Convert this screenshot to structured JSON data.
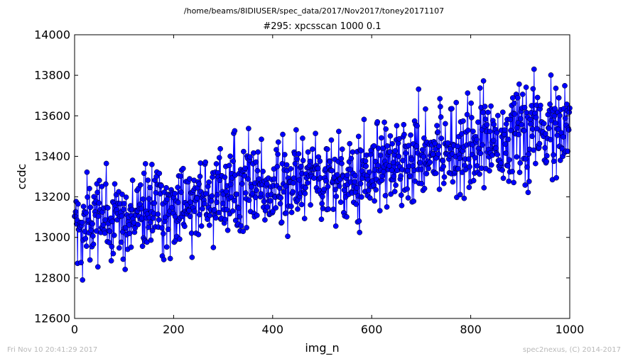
{
  "chart_data": {
    "type": "line",
    "suptitle": "/home/beams/8IDIUSER/spec_data/2017/Nov2017/toney20171107",
    "title": "#295: xpcsscan 1000 0.1",
    "xlabel": "img_n",
    "ylabel": "ccdc",
    "xlim": [
      0,
      1000
    ],
    "ylim": [
      12600,
      14000
    ],
    "xticks": [
      0,
      200,
      400,
      600,
      800,
      1000
    ],
    "yticks": [
      12600,
      12800,
      13000,
      13200,
      13400,
      13600,
      13800,
      14000
    ],
    "grid": false,
    "n_points": 1000,
    "trend": {
      "x": [
        0,
        100,
        200,
        300,
        400,
        500,
        600,
        700,
        800,
        900,
        1000
      ],
      "y": [
        13060,
        13080,
        13160,
        13210,
        13250,
        13300,
        13340,
        13420,
        13460,
        13510,
        13530
      ]
    },
    "noise_std": 110,
    "y_min": 12780,
    "y_max": 13830,
    "series": [
      {
        "color": "#0000ff",
        "marker": "circle"
      }
    ]
  },
  "footer": {
    "left": "Fri Nov 10 20:41:29 2017",
    "right": "spec2nexus, (C) 2014-2017"
  }
}
